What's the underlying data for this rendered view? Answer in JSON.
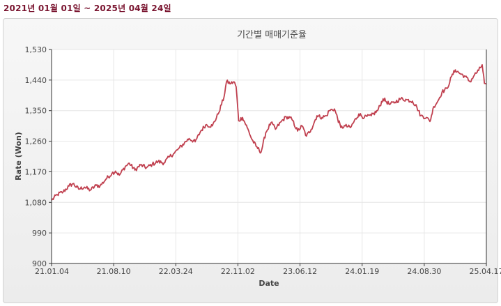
{
  "header": {
    "period_text": "2021년 01월 01일 ~ 2025년 04월 24일"
  },
  "colors": {
    "series": "#c0404f",
    "plot_bg": "#ffffff",
    "grid": "#e6e6e6",
    "period_text": "#7a1530"
  },
  "chart_data": {
    "type": "line",
    "title": "기간별 매매기준율",
    "xlabel": "Date",
    "ylabel": "Rate (Won)",
    "ylim": [
      900,
      1530
    ],
    "yticks": [
      "1,530",
      "1,440",
      "1,350",
      "1,260",
      "1,170",
      "1,080",
      "990",
      "900"
    ],
    "xticks": [
      "21.01.04",
      "21.08.10",
      "22.03.24",
      "22.11.02",
      "23.06.12",
      "24.01.19",
      "24.08.30",
      "25.04.17"
    ],
    "xlim": [
      "2021-01-04",
      "2025-04-24"
    ],
    "grid": true,
    "series": [
      {
        "name": "",
        "points": [
          [
            "2021-01-04",
            1086
          ],
          [
            "2021-01-25",
            1103
          ],
          [
            "2021-02-15",
            1111
          ],
          [
            "2021-03-08",
            1128
          ],
          [
            "2021-03-22",
            1135
          ],
          [
            "2021-04-12",
            1119
          ],
          [
            "2021-05-03",
            1125
          ],
          [
            "2021-05-24",
            1116
          ],
          [
            "2021-06-14",
            1130
          ],
          [
            "2021-06-28",
            1128
          ],
          [
            "2021-07-19",
            1148
          ],
          [
            "2021-08-10",
            1165
          ],
          [
            "2021-08-23",
            1172
          ],
          [
            "2021-09-06",
            1160
          ],
          [
            "2021-09-27",
            1185
          ],
          [
            "2021-10-12",
            1195
          ],
          [
            "2021-11-01",
            1175
          ],
          [
            "2021-11-22",
            1190
          ],
          [
            "2021-12-13",
            1182
          ],
          [
            "2022-01-03",
            1192
          ],
          [
            "2022-01-24",
            1200
          ],
          [
            "2022-02-14",
            1196
          ],
          [
            "2022-03-07",
            1215
          ],
          [
            "2022-03-24",
            1225
          ],
          [
            "2022-04-11",
            1240
          ],
          [
            "2022-04-29",
            1255
          ],
          [
            "2022-05-16",
            1268
          ],
          [
            "2022-06-07",
            1258
          ],
          [
            "2022-06-27",
            1290
          ],
          [
            "2022-07-15",
            1308
          ],
          [
            "2022-08-08",
            1305
          ],
          [
            "2022-08-29",
            1340
          ],
          [
            "2022-09-19",
            1390
          ],
          [
            "2022-09-28",
            1435
          ],
          [
            "2022-10-14",
            1430
          ],
          [
            "2022-10-25",
            1435
          ],
          [
            "2022-11-02",
            1420
          ],
          [
            "2022-11-11",
            1320
          ],
          [
            "2022-11-25",
            1330
          ],
          [
            "2022-12-12",
            1300
          ],
          [
            "2022-12-29",
            1265
          ],
          [
            "2023-01-13",
            1245
          ],
          [
            "2023-01-31",
            1228
          ],
          [
            "2023-02-17",
            1285
          ],
          [
            "2023-03-08",
            1315
          ],
          [
            "2023-03-24",
            1295
          ],
          [
            "2023-04-14",
            1318
          ],
          [
            "2023-05-02",
            1332
          ],
          [
            "2023-05-22",
            1325
          ],
          [
            "2023-06-12",
            1290
          ],
          [
            "2023-06-28",
            1305
          ],
          [
            "2023-07-14",
            1275
          ],
          [
            "2023-07-31",
            1295
          ],
          [
            "2023-08-21",
            1335
          ],
          [
            "2023-09-08",
            1330
          ],
          [
            "2023-09-25",
            1335
          ],
          [
            "2023-10-04",
            1350
          ],
          [
            "2023-10-23",
            1355
          ],
          [
            "2023-11-15",
            1300
          ],
          [
            "2023-12-01",
            1305
          ],
          [
            "2023-12-20",
            1300
          ],
          [
            "2024-01-19",
            1340
          ],
          [
            "2024-02-08",
            1330
          ],
          [
            "2024-03-04",
            1335
          ],
          [
            "2024-03-27",
            1350
          ],
          [
            "2024-04-16",
            1385
          ],
          [
            "2024-05-10",
            1368
          ],
          [
            "2024-05-29",
            1375
          ],
          [
            "2024-06-19",
            1385
          ],
          [
            "2024-07-10",
            1382
          ],
          [
            "2024-07-31",
            1378
          ],
          [
            "2024-08-16",
            1360
          ],
          [
            "2024-08-30",
            1335
          ],
          [
            "2024-09-19",
            1330
          ],
          [
            "2024-10-02",
            1318
          ],
          [
            "2024-10-16",
            1362
          ],
          [
            "2024-11-01",
            1380
          ],
          [
            "2024-11-15",
            1405
          ],
          [
            "2024-12-03",
            1415
          ],
          [
            "2024-12-19",
            1450
          ],
          [
            "2025-01-02",
            1470
          ],
          [
            "2025-01-17",
            1460
          ],
          [
            "2025-02-04",
            1452
          ],
          [
            "2025-02-24",
            1435
          ],
          [
            "2025-03-12",
            1455
          ],
          [
            "2025-03-27",
            1468
          ],
          [
            "2025-04-09",
            1485
          ],
          [
            "2025-04-17",
            1430
          ],
          [
            "2025-04-24",
            1428
          ]
        ]
      }
    ]
  }
}
